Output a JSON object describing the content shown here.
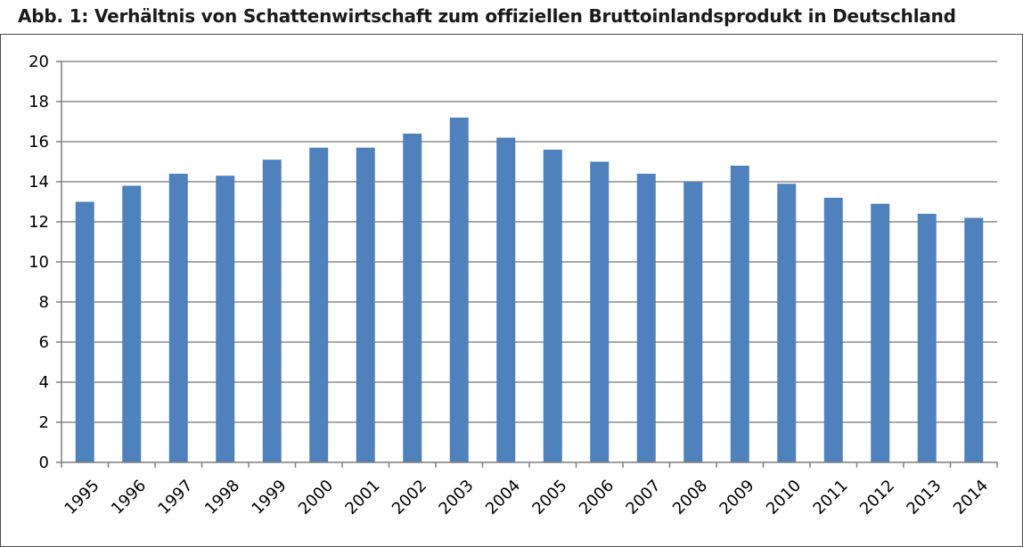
{
  "title": "Abb. 1: Verhältnis von Schattenwirtschaft zum offiziellen Bruttoinlandsprodukt in Deutschland",
  "chart_data": {
    "type": "bar",
    "title": "Abb. 1: Verhältnis von Schattenwirtschaft zum offiziellen Bruttoinlandsprodukt in Deutschland",
    "xlabel": "",
    "ylabel": "",
    "categories": [
      "1995",
      "1996",
      "1997",
      "1998",
      "1999",
      "2000",
      "2001",
      "2002",
      "2003",
      "2004",
      "2005",
      "2006",
      "2007",
      "2008",
      "2009",
      "2010",
      "2011",
      "2012",
      "2013",
      "2014"
    ],
    "values": [
      13.0,
      13.8,
      14.4,
      14.3,
      15.1,
      15.7,
      15.7,
      16.4,
      17.2,
      16.2,
      15.6,
      15.0,
      14.4,
      14.0,
      14.8,
      13.9,
      13.2,
      12.9,
      12.4,
      12.2
    ],
    "ylim": [
      0,
      20
    ],
    "yticks": [
      "0",
      "2",
      "4",
      "6",
      "8",
      "10",
      "12",
      "14",
      "16",
      "18",
      "20"
    ],
    "grid": true,
    "legend": "none",
    "colors": {
      "bar": "#4f81bd",
      "grid": "#8c8c8c",
      "axis": "#7f7f7f"
    }
  }
}
